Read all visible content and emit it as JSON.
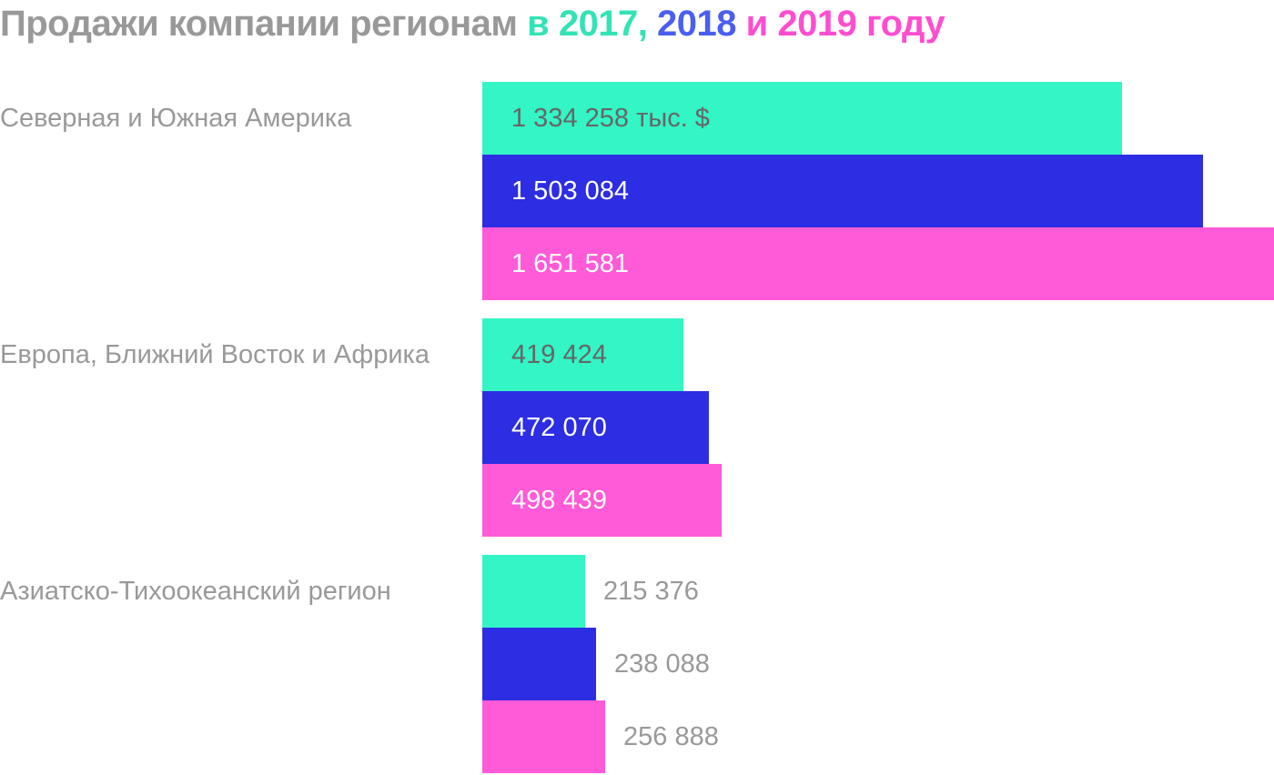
{
  "title": {
    "prefix": "Продажи компании регионам",
    "parts": [
      {
        "text": " в 2017,",
        "color": "#33e3b5"
      },
      {
        "text": " 2018",
        "color": "#4a5ef0"
      },
      {
        "text": " и 2019 году",
        "color": "#ff4dd1"
      }
    ]
  },
  "chart_data": {
    "type": "bar",
    "orientation": "horizontal",
    "title": "Продажи компании регионам в 2017, 2018 и 2019 году",
    "unit_label": "тыс. $",
    "categories": [
      "Северная и Южная Америка",
      "Европа, Ближний Восток и Африка",
      "Азиатско-Тихоокеанский регион"
    ],
    "series": [
      {
        "name": "2017",
        "color": "#33f5c5",
        "values": [
          1334258,
          419424,
          215376
        ],
        "labels": [
          "1 334 258 тыс. $",
          "419 424",
          "215 376"
        ]
      },
      {
        "name": "2018",
        "color": "#2d2de3",
        "values": [
          1503084,
          472070,
          238088
        ],
        "labels": [
          "1 503 084",
          "472 070",
          "238 088"
        ]
      },
      {
        "name": "2019",
        "color": "#ff5ad8",
        "values": [
          1651581,
          498439,
          256888
        ],
        "labels": [
          "1 651 581",
          "498 439",
          "256 888"
        ]
      }
    ],
    "xlim": [
      0,
      1651581
    ],
    "grid": false,
    "legend": "none"
  },
  "colors": {
    "text_gray": "#999999",
    "inside_dark": "#666666",
    "inside_light": "#ffffff"
  }
}
